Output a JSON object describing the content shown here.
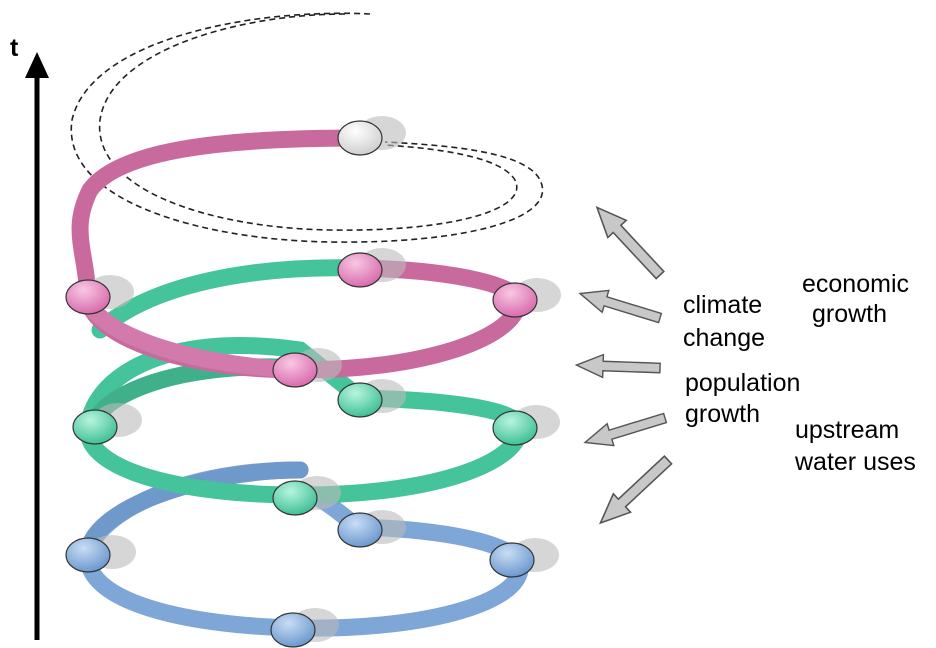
{
  "axis": {
    "label": "t"
  },
  "labels": [
    {
      "lines": [
        "economic",
        "growth"
      ]
    },
    {
      "lines": [
        "climate",
        "change"
      ]
    },
    {
      "lines": [
        "population",
        "growth"
      ]
    },
    {
      "lines": [
        "upstream",
        "water uses"
      ]
    }
  ]
}
